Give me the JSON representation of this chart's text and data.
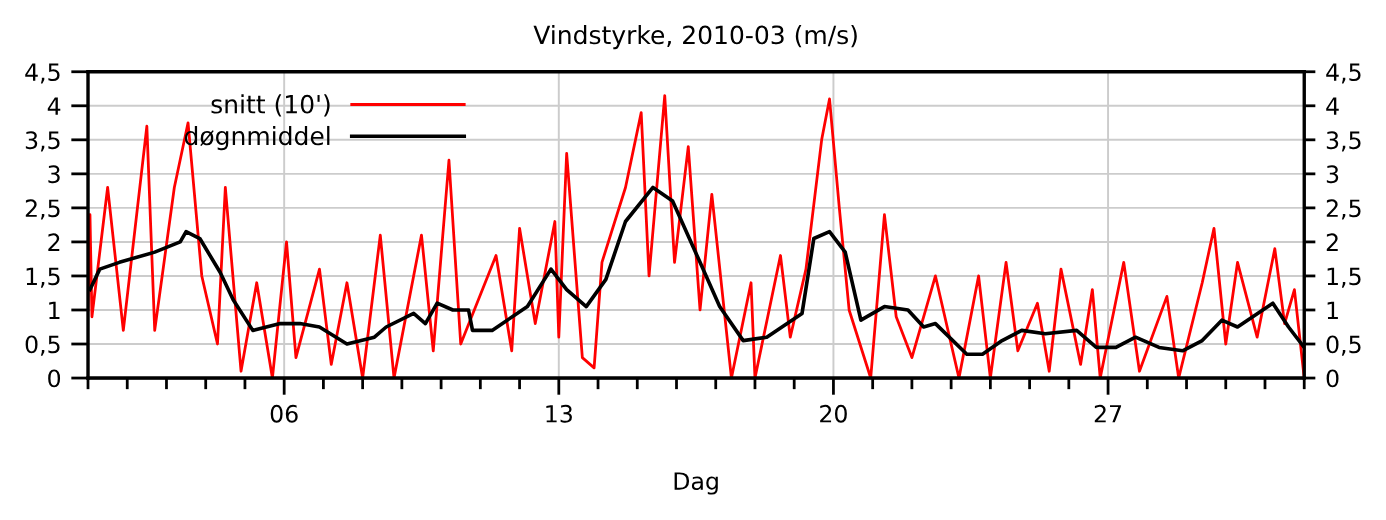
{
  "chart_data": {
    "type": "line",
    "title": "Vindstyrke, 2010-03 (m/s)",
    "xlabel": "Dag",
    "xlim": [
      1,
      32
    ],
    "xticks": [
      {
        "value": 1,
        "label": null
      },
      {
        "value": 2,
        "label": null
      },
      {
        "value": 3,
        "label": null
      },
      {
        "value": 4,
        "label": null
      },
      {
        "value": 5,
        "label": null
      },
      {
        "value": 6,
        "label": "06"
      },
      {
        "value": 7,
        "label": null
      },
      {
        "value": 8,
        "label": null
      },
      {
        "value": 9,
        "label": null
      },
      {
        "value": 10,
        "label": null
      },
      {
        "value": 11,
        "label": null
      },
      {
        "value": 12,
        "label": null
      },
      {
        "value": 13,
        "label": "13"
      },
      {
        "value": 14,
        "label": null
      },
      {
        "value": 15,
        "label": null
      },
      {
        "value": 16,
        "label": null
      },
      {
        "value": 17,
        "label": null
      },
      {
        "value": 18,
        "label": null
      },
      {
        "value": 19,
        "label": null
      },
      {
        "value": 20,
        "label": "20"
      },
      {
        "value": 21,
        "label": null
      },
      {
        "value": 22,
        "label": null
      },
      {
        "value": 23,
        "label": null
      },
      {
        "value": 24,
        "label": null
      },
      {
        "value": 25,
        "label": null
      },
      {
        "value": 26,
        "label": null
      },
      {
        "value": 27,
        "label": "27"
      },
      {
        "value": 28,
        "label": null
      },
      {
        "value": 29,
        "label": null
      },
      {
        "value": 30,
        "label": null
      },
      {
        "value": 31,
        "label": null
      },
      {
        "value": 32,
        "label": null
      }
    ],
    "ylim": [
      0,
      4.5
    ],
    "yticks": [
      0,
      {
        "value": 0.5,
        "label": "0,5"
      },
      1,
      {
        "value": 1.5,
        "label": "1,5"
      },
      2,
      {
        "value": 2.5,
        "label": "2,5"
      },
      3,
      {
        "value": 3.5,
        "label": "3,5"
      },
      4,
      {
        "value": 4.5,
        "label": "4,5"
      }
    ],
    "y2lim": [
      0,
      4.5
    ],
    "y2ticks": [
      0,
      {
        "value": 0.5,
        "label": "0,5"
      },
      1,
      {
        "value": 1.5,
        "label": "1,5"
      },
      2,
      {
        "value": 2.5,
        "label": "2,5"
      },
      3,
      {
        "value": 3.5,
        "label": "3,5"
      },
      4,
      {
        "value": 4.5,
        "label": "4,5"
      }
    ],
    "grid": true,
    "legend": "top left",
    "marker": "none",
    "line_style": "solid",
    "series": [
      {
        "name": "snitt (10')",
        "color": "#ff0000",
        "x": [
          1.0,
          1.05,
          1.1,
          1.5,
          1.9,
          2.5,
          2.7,
          3.2,
          3.55,
          3.9,
          4.3,
          4.5,
          4.9,
          5.3,
          5.7,
          6.06,
          6.3,
          6.9,
          7.2,
          7.6,
          8.0,
          8.45,
          8.8,
          9.5,
          9.8,
          10.2,
          10.5,
          11.4,
          11.8,
          12.0,
          12.4,
          12.9,
          13.0,
          13.2,
          13.6,
          13.9,
          14.1,
          14.7,
          15.1,
          15.3,
          15.7,
          15.95,
          16.3,
          16.6,
          16.9,
          17.4,
          17.9,
          18.0,
          18.65,
          18.9,
          19.3,
          19.7,
          19.9,
          20.15,
          20.4,
          20.95,
          21.3,
          21.6,
          22.0,
          22.6,
          23.2,
          23.7,
          24.0,
          24.4,
          24.7,
          25.2,
          25.5,
          25.8,
          26.3,
          26.6,
          26.8,
          27.4,
          27.8,
          28.5,
          28.8,
          29.4,
          29.7,
          30.0,
          30.3,
          30.8,
          31.25,
          31.5,
          31.75,
          32.0
        ],
        "values": [
          1.0,
          2.4,
          0.9,
          2.8,
          0.7,
          3.7,
          0.7,
          2.8,
          3.75,
          1.5,
          0.5,
          2.8,
          0.1,
          1.4,
          0.0,
          2.0,
          0.3,
          1.6,
          0.2,
          1.4,
          0.0,
          2.1,
          0.0,
          2.1,
          0.4,
          3.2,
          0.5,
          1.8,
          0.4,
          2.2,
          0.8,
          2.3,
          0.6,
          3.3,
          0.3,
          0.15,
          1.7,
          2.8,
          3.9,
          1.5,
          4.15,
          1.7,
          3.4,
          1.0,
          2.7,
          0.0,
          1.4,
          0.0,
          1.8,
          0.6,
          1.6,
          3.5,
          4.1,
          2.5,
          1.0,
          0.0,
          2.4,
          0.9,
          0.3,
          1.5,
          0.0,
          1.5,
          0.0,
          1.7,
          0.4,
          1.1,
          0.1,
          1.6,
          0.2,
          1.3,
          0.0,
          1.7,
          0.1,
          1.2,
          0.0,
          1.4,
          2.2,
          0.5,
          1.7,
          0.6,
          1.9,
          0.8,
          1.3,
          0.0
        ]
      },
      {
        "name": "døgnmiddel",
        "color": "#000000",
        "x": [
          1.05,
          1.3,
          1.8,
          2.7,
          3.35,
          3.5,
          3.85,
          4.37,
          4.7,
          5.2,
          5.9,
          6.4,
          6.9,
          7.6,
          8.3,
          8.6,
          9.3,
          9.6,
          9.9,
          10.3,
          10.7,
          10.8,
          11.3,
          12.2,
          12.8,
          13.2,
          13.7,
          14.2,
          14.7,
          15.4,
          15.9,
          16.6,
          17.1,
          17.7,
          18.3,
          19.2,
          19.5,
          19.9,
          20.3,
          20.7,
          21.3,
          21.9,
          22.3,
          22.6,
          23.4,
          23.8,
          24.3,
          24.8,
          25.4,
          26.2,
          26.7,
          27.2,
          27.7,
          28.3,
          28.9,
          29.4,
          29.9,
          30.3,
          31.2,
          31.6,
          32.0
        ],
        "values": [
          1.3,
          1.6,
          1.7,
          1.85,
          2.0,
          2.15,
          2.05,
          1.55,
          1.15,
          0.7,
          0.8,
          0.8,
          0.75,
          0.5,
          0.6,
          0.75,
          0.95,
          0.8,
          1.1,
          1.0,
          1.0,
          0.7,
          0.7,
          1.05,
          1.6,
          1.3,
          1.05,
          1.45,
          2.3,
          2.8,
          2.6,
          1.7,
          1.05,
          0.55,
          0.6,
          0.95,
          2.05,
          2.15,
          1.85,
          0.85,
          1.05,
          1.0,
          0.75,
          0.8,
          0.35,
          0.35,
          0.55,
          0.7,
          0.65,
          0.7,
          0.45,
          0.45,
          0.6,
          0.45,
          0.4,
          0.55,
          0.85,
          0.75,
          1.1,
          0.75,
          0.45
        ]
      }
    ]
  }
}
